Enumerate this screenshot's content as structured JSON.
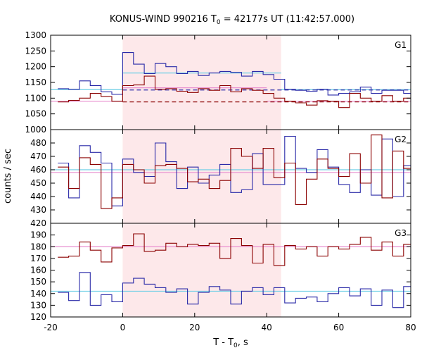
{
  "title_main": "KONUS-WIND 990216 T",
  "title_sub": "0",
  "title_tail": " = 42177s UT (11:42:57.000)",
  "ylabel": "counts / sec",
  "xlabel_main": "T - T",
  "xlabel_sub": "0",
  "xlabel_tail": ", s",
  "colors": {
    "red_series": "#8b0000",
    "blue_series": "#2a2aa8",
    "shade": "#fde8ea",
    "fit_cyan": "#6ecfe6",
    "fit_pink": "#e88fcf"
  },
  "chart_data": [
    {
      "type": "line",
      "panel": "G1",
      "xlim": [
        -20,
        80
      ],
      "ylim": [
        1000,
        1300
      ],
      "y_ticks": [
        1000,
        1050,
        1100,
        1150,
        1200,
        1250,
        1300
      ],
      "x_ticks": [
        -20,
        0,
        20,
        40,
        60,
        80
      ],
      "shaded_interval": [
        0,
        44
      ],
      "x_edges": [
        -18,
        -15,
        -12,
        -9,
        -6,
        -3,
        0,
        3,
        6,
        9,
        12,
        15,
        18,
        21,
        24,
        27,
        30,
        33,
        36,
        39,
        42,
        45,
        48,
        51,
        54,
        57,
        60,
        63,
        66,
        69,
        72,
        75,
        78,
        81
      ],
      "series": [
        {
          "color": "blue",
          "values": [
            1130,
            1128,
            1155,
            1140,
            1120,
            1112,
            1245,
            1208,
            1178,
            1210,
            1200,
            1178,
            1185,
            1172,
            1180,
            1185,
            1182,
            1170,
            1185,
            1175,
            1160,
            1128,
            1125,
            1122,
            1128,
            1110,
            1115,
            1120,
            1135,
            1115,
            1125,
            1125,
            1115
          ]
        },
        {
          "color": "red",
          "values": [
            1088,
            1093,
            1100,
            1115,
            1105,
            1090,
            1140,
            1142,
            1170,
            1128,
            1130,
            1122,
            1118,
            1130,
            1125,
            1140,
            1120,
            1130,
            1125,
            1115,
            1100,
            1090,
            1085,
            1078,
            1092,
            1090,
            1070,
            1115,
            1100,
            1090,
            1108,
            1090,
            1100
          ]
        }
      ],
      "fits": [
        {
          "color": "cyan",
          "style": "solid",
          "segments": [
            [
              -20,
              0,
              1127
            ],
            [
              0,
              44,
              1180
            ],
            [
              44,
              80,
              1127
            ]
          ]
        },
        {
          "color": "blue",
          "style": "dashed",
          "segments": [
            [
              0,
              80,
              1126
            ]
          ]
        },
        {
          "color": "pink",
          "style": "solid",
          "segments": [
            [
              -20,
              0,
              1090
            ],
            [
              0,
              40,
              1133
            ],
            [
              40,
              80,
              1090
            ]
          ]
        },
        {
          "color": "red",
          "style": "dashed",
          "segments": [
            [
              0,
              80,
              1088
            ]
          ]
        }
      ]
    },
    {
      "type": "line",
      "panel": "G2",
      "xlim": [
        -20,
        80
      ],
      "ylim": [
        420,
        490
      ],
      "y_ticks": [
        420,
        430,
        440,
        450,
        460,
        470,
        480
      ],
      "x_ticks": [
        -20,
        0,
        20,
        40,
        60,
        80
      ],
      "shaded_interval": [
        0,
        44
      ],
      "x_edges": [
        -18,
        -15,
        -12,
        -9,
        -6,
        -3,
        0,
        3,
        6,
        9,
        12,
        15,
        18,
        21,
        24,
        27,
        30,
        33,
        36,
        39,
        42,
        45,
        48,
        51,
        54,
        57,
        60,
        63,
        66,
        69,
        72,
        75,
        78,
        81
      ],
      "series": [
        {
          "color": "blue",
          "values": [
            465,
            439,
            478,
            473,
            465,
            433,
            468,
            458,
            455,
            480,
            466,
            446,
            462,
            450,
            456,
            464,
            443,
            445,
            472,
            449,
            449,
            485,
            461,
            458,
            475,
            462,
            449,
            443,
            460,
            441,
            483,
            440,
            463
          ]
        },
        {
          "color": "red",
          "values": [
            462,
            446,
            469,
            464,
            431,
            439,
            464,
            460,
            450,
            463,
            464,
            461,
            451,
            453,
            446,
            452,
            476,
            470,
            461,
            476,
            454,
            465,
            434,
            453,
            468,
            461,
            455,
            472,
            450,
            486,
            439,
            474,
            461
          ]
        }
      ],
      "fits": [
        {
          "color": "cyan",
          "style": "solid",
          "segments": [
            [
              -20,
              80,
              460
            ]
          ]
        },
        {
          "color": "pink",
          "style": "solid",
          "segments": [
            [
              -20,
              80,
              458
            ]
          ]
        }
      ]
    },
    {
      "type": "line",
      "panel": "G3",
      "xlim": [
        -20,
        80
      ],
      "ylim": [
        120,
        200
      ],
      "y_ticks": [
        120,
        130,
        140,
        150,
        160,
        170,
        180,
        190
      ],
      "x_ticks": [
        -20,
        0,
        20,
        40,
        60,
        80
      ],
      "shaded_interval": [
        0,
        44
      ],
      "x_edges": [
        -18,
        -15,
        -12,
        -9,
        -6,
        -3,
        0,
        3,
        6,
        9,
        12,
        15,
        18,
        21,
        24,
        27,
        30,
        33,
        36,
        39,
        42,
        45,
        48,
        51,
        54,
        57,
        60,
        63,
        66,
        69,
        72,
        75,
        78,
        81
      ],
      "series": [
        {
          "color": "red",
          "values": [
            171,
            172,
            184,
            177,
            167,
            179,
            181,
            191,
            176,
            177,
            183,
            180,
            182,
            181,
            183,
            170,
            187,
            181,
            166,
            182,
            164,
            181,
            178,
            180,
            172,
            180,
            178,
            182,
            188,
            177,
            184,
            172,
            182
          ]
        },
        {
          "color": "blue",
          "values": [
            141,
            134,
            158,
            130,
            139,
            133,
            149,
            153,
            148,
            145,
            141,
            144,
            131,
            141,
            146,
            143,
            131,
            142,
            145,
            139,
            145,
            132,
            136,
            137,
            133,
            140,
            145,
            138,
            144,
            130,
            143,
            128,
            146
          ]
        }
      ],
      "fits": [
        {
          "color": "cyan",
          "style": "solid",
          "segments": [
            [
              -20,
              80,
              142
            ]
          ]
        },
        {
          "color": "pink",
          "style": "solid",
          "segments": [
            [
              -20,
              80,
              180
            ]
          ]
        }
      ]
    }
  ],
  "panel_labels": [
    "G1",
    "G2",
    "G3"
  ],
  "tick_labels": {
    "g1_y": [
      "1000",
      "1050",
      "1100",
      "1150",
      "1200",
      "1250",
      "1300"
    ],
    "g2_y": [
      "420",
      "430",
      "440",
      "450",
      "460",
      "470",
      "480"
    ],
    "g3_y": [
      "120",
      "130",
      "140",
      "150",
      "160",
      "170",
      "180",
      "190"
    ],
    "x": [
      "-20",
      "0",
      "20",
      "40",
      "60",
      "80"
    ]
  }
}
